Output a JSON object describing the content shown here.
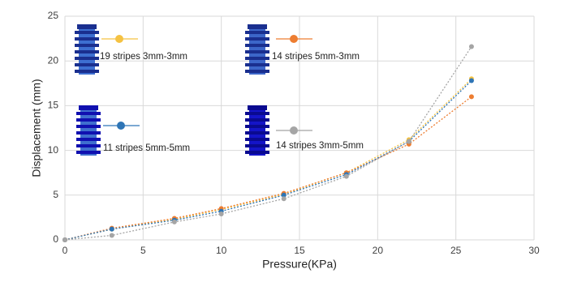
{
  "chart_data": {
    "type": "scatter",
    "x_label": "Pressure(KPa)",
    "y_label": "Displacement (mm)",
    "x": [
      0,
      3,
      7,
      10,
      14,
      18,
      22,
      26
    ],
    "series": [
      {
        "name": "19 stripes 3mm-3mm",
        "color": "#f5c242",
        "values": [
          0,
          1.2,
          2.3,
          3.4,
          5.1,
          7.5,
          11.2,
          18.0
        ]
      },
      {
        "name": "14 stripes 5mm-3mm",
        "color": "#ed7d31",
        "values": [
          0,
          1.3,
          2.4,
          3.5,
          5.2,
          7.5,
          10.7,
          16.0
        ]
      },
      {
        "name": "11 stripes 5mm-5mm",
        "color": "#2e75b6",
        "values": [
          0,
          1.2,
          2.2,
          3.2,
          5.0,
          7.3,
          11.0,
          17.8
        ]
      },
      {
        "name": "14 stripes 3mm-5mm",
        "color": "#a5a5a5",
        "values": [
          0,
          0.5,
          2.0,
          2.9,
          4.6,
          7.1,
          11.0,
          21.6
        ]
      }
    ],
    "xlim": [
      0,
      30
    ],
    "xticks": [
      0,
      5,
      10,
      15,
      20,
      25,
      30
    ],
    "ylim": [
      0,
      25
    ],
    "yticks": [
      0,
      5,
      10,
      15,
      20,
      25
    ],
    "grid": true,
    "line_style": "dotted"
  }
}
